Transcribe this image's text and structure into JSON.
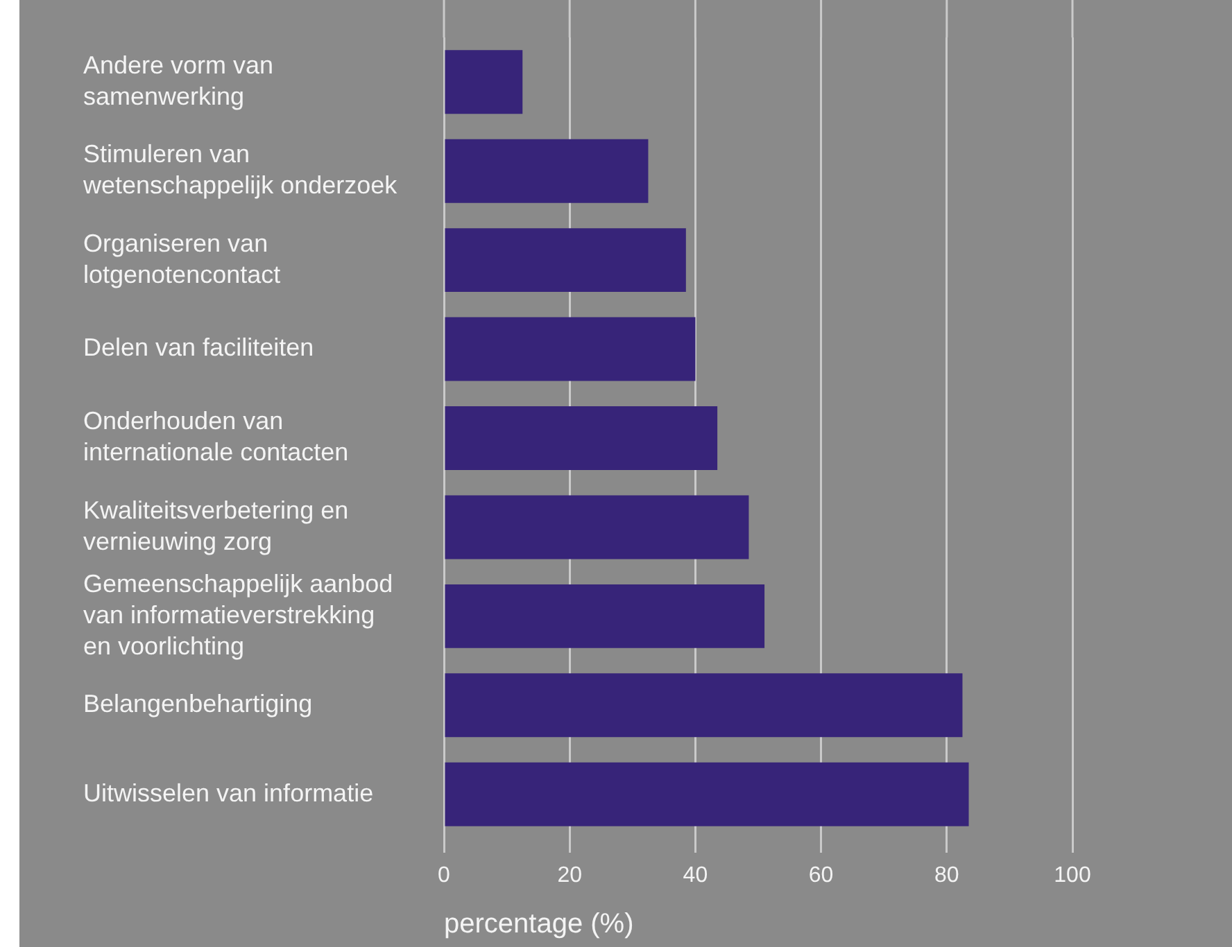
{
  "chart_data": {
    "type": "bar",
    "orientation": "horizontal",
    "categories": [
      "Andere vorm van samenwerking",
      "Stimuleren van wetenschappelijk onderzoek",
      "Organiseren van lotgenotencontact",
      "Delen van faciliteiten",
      "Onderhouden van internationale contacten",
      "Kwaliteitsverbetering en vernieuwing zorg",
      "Gemeenschappelijk aanbod van informatieverstrekking en voorlichting",
      "Belangenbehartiging",
      "Uitwisselen van informatie"
    ],
    "values": [
      12.5,
      32.5,
      38.5,
      40,
      43.5,
      48.5,
      51,
      82.5,
      83.5
    ],
    "color": "#372479",
    "xlabel": "percentage (%)",
    "xlim": [
      0,
      100
    ],
    "xticks": [
      0,
      20,
      40,
      60,
      80,
      100
    ],
    "grid": "x"
  }
}
